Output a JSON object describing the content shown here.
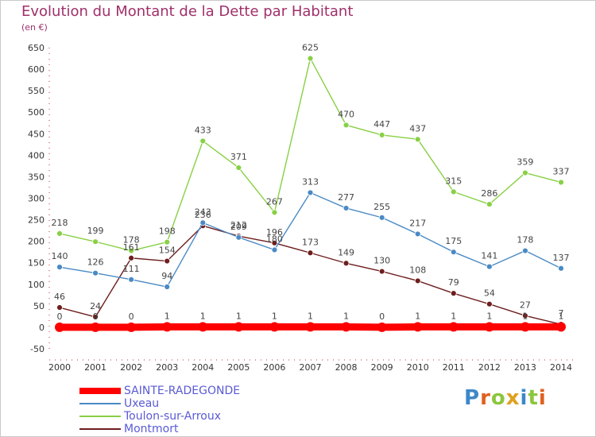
{
  "chart_data": {
    "type": "line",
    "title": "Evolution du Montant de la Dette par Habitant",
    "subtitle": "(en €)",
    "x": [
      "2000",
      "2001",
      "2002",
      "2003",
      "2004",
      "2005",
      "2006",
      "2007",
      "2008",
      "2009",
      "2010",
      "2011",
      "2012",
      "2013",
      "2014"
    ],
    "ylim": [
      -50,
      650
    ],
    "yticks": [
      -50,
      0,
      50,
      100,
      150,
      200,
      250,
      300,
      350,
      400,
      450,
      500,
      550,
      600,
      650
    ],
    "grid": false,
    "legend_position": "bottom-left",
    "series": [
      {
        "name": "SAINTE-RADEGONDE",
        "color": "#ff0000",
        "values": [
          0,
          0,
          0,
          1,
          1,
          1,
          1,
          1,
          1,
          0,
          1,
          1,
          1,
          1,
          1
        ]
      },
      {
        "name": "Uxeau",
        "color": "#4a8ac4",
        "values": [
          140,
          126,
          111,
          94,
          243,
          209,
          180,
          313,
          277,
          255,
          217,
          175,
          141,
          178,
          137
        ]
      },
      {
        "name": "Toulon-sur-Arroux",
        "color": "#88d044",
        "values": [
          218,
          199,
          178,
          198,
          433,
          371,
          267,
          625,
          470,
          447,
          437,
          315,
          286,
          359,
          337
        ]
      },
      {
        "name": "Montmort",
        "color": "#6e1e1e",
        "values": [
          46,
          24,
          161,
          154,
          236,
          212,
          196,
          173,
          149,
          130,
          108,
          79,
          54,
          27,
          7
        ]
      }
    ]
  },
  "brand": {
    "letters": [
      "P",
      "r",
      "o",
      "x",
      "i",
      "t",
      "i"
    ],
    "colors": [
      "#3d88c8",
      "#e0601e",
      "#8cc63e",
      "#e0a01e",
      "#3d88c8",
      "#8cc63e",
      "#e0601e"
    ]
  }
}
